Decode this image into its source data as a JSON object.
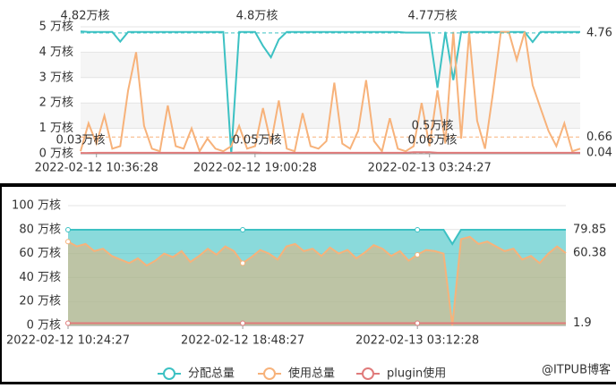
{
  "chart_data": [
    {
      "type": "line",
      "split_area": true,
      "grid": true,
      "categories": [
        null,
        null,
        "2022-02-12 10:36:28",
        null,
        null,
        null,
        null,
        null,
        null,
        null,
        null,
        null,
        null,
        null,
        null,
        null,
        null,
        null,
        null,
        null,
        null,
        null,
        "2022-02-12 19:00:28",
        null,
        null,
        null,
        null,
        null,
        null,
        null,
        null,
        null,
        null,
        null,
        null,
        null,
        null,
        null,
        null,
        null,
        null,
        null,
        null,
        null,
        "2022-02-13 03:24:27",
        null,
        null,
        null,
        null,
        null,
        null,
        null,
        null,
        null,
        null,
        null,
        null,
        null,
        null,
        null,
        null,
        null,
        null,
        null
      ],
      "ylim": [
        0,
        5
      ],
      "yticks": [
        {
          "value": 0,
          "label": "0 万核"
        },
        {
          "value": 1,
          "label": "1 万核"
        },
        {
          "value": 2,
          "label": "2 万核"
        },
        {
          "value": 3,
          "label": "3 万核"
        },
        {
          "value": 4,
          "label": "4 万核"
        },
        {
          "value": 5,
          "label": "5 万核"
        }
      ],
      "series": [
        {
          "color": "#3cc1c3",
          "average": 4.76,
          "values": [
            4.82,
            4.8,
            4.8,
            4.8,
            4.8,
            4.42,
            4.8,
            4.8,
            4.8,
            4.8,
            4.8,
            4.8,
            4.8,
            4.8,
            4.8,
            4.8,
            4.8,
            4.8,
            4.8,
            0,
            4.8,
            4.8,
            4.8,
            4.25,
            3.8,
            4.5,
            4.8,
            4.8,
            4.8,
            4.8,
            4.8,
            4.8,
            4.8,
            4.8,
            4.8,
            4.8,
            4.8,
            4.8,
            4.8,
            4.8,
            4.8,
            4.77,
            4.77,
            4.77,
            4.77,
            2.6,
            4.8,
            2.9,
            4.8,
            4.8,
            4.8,
            4.8,
            4.8,
            4.8,
            4.8,
            4.8,
            4.8,
            4.4,
            4.8,
            4.8,
            4.8,
            4.8,
            4.8,
            4.8
          ]
        },
        {
          "color": "#f7b27a",
          "average": 0.66,
          "values": [
            0.1,
            1.2,
            0.4,
            1.5,
            0.2,
            0.3,
            2.5,
            4.0,
            1.1,
            0.2,
            0.1,
            1.9,
            0.3,
            0.2,
            1.0,
            0.1,
            0.6,
            0.2,
            0.1,
            0.3,
            1.1,
            0.2,
            0.3,
            1.8,
            0.4,
            2.1,
            0.2,
            0.1,
            1.6,
            0.3,
            0.2,
            0.5,
            2.8,
            0.4,
            0.2,
            0.9,
            2.9,
            0.5,
            0.1,
            1.4,
            0.2,
            0.1,
            0.3,
            2.0,
            0.3,
            2.5,
            0.4,
            4.8,
            0.6,
            4.8,
            1.3,
            0.2,
            2.4,
            4.8,
            4.8,
            3.7,
            4.8,
            2.7,
            1.8,
            0.9,
            0.3,
            1.2,
            0.1,
            0.2
          ]
        },
        {
          "color": "#e07b7b",
          "average": 0.04,
          "values": [
            0.03,
            0.03,
            0.04,
            0.04,
            0.04,
            0.04,
            0.04,
            0.04,
            0.04,
            0.04,
            0.04,
            0.04,
            0.04,
            0.04,
            0.04,
            0.04,
            0.04,
            0.04,
            0.04,
            0.04,
            0.05,
            0.05,
            0.05,
            0.04,
            0.04,
            0.04,
            0.04,
            0.04,
            0.04,
            0.04,
            0.04,
            0.04,
            0.04,
            0.04,
            0.04,
            0.04,
            0.04,
            0.04,
            0.04,
            0.04,
            0.04,
            0.04,
            0.06,
            0.06,
            0.06,
            0.04,
            0.04,
            0.04,
            0.04,
            0.04,
            0.04,
            0.04,
            0.04,
            0.04,
            0.04,
            0.04,
            0.04,
            0.04,
            0.04,
            0.04,
            0.04,
            0.04,
            0.04,
            0.04
          ]
        }
      ],
      "annotations": [
        {
          "text": "4.82万核",
          "color": "#3cc1c3"
        },
        {
          "text": "4.8万核",
          "color": "#3cc1c3"
        },
        {
          "text": "4.77万核",
          "color": "#3cc1c3"
        },
        {
          "text": "0.03万核",
          "color": "#e07b7b"
        },
        {
          "text": "0.05万核",
          "color": "#e07b7b"
        },
        {
          "text": "0.06万核",
          "color": "#e07b7b"
        },
        {
          "text": "0.5万核",
          "color": "#f7d2b0"
        }
      ]
    },
    {
      "type": "area",
      "grid": true,
      "dots": true,
      "categories": [
        "2022-02-12 10:24:27",
        null,
        null,
        null,
        null,
        null,
        null,
        null,
        null,
        null,
        null,
        null,
        null,
        null,
        null,
        null,
        null,
        null,
        null,
        null,
        "2022-02-12 18:48:27",
        null,
        null,
        null,
        null,
        null,
        null,
        null,
        null,
        null,
        null,
        null,
        null,
        null,
        null,
        null,
        null,
        null,
        null,
        null,
        "2022-02-13 03:12:28",
        null,
        null,
        null,
        null,
        null,
        null,
        null,
        null,
        null,
        null,
        null,
        null,
        null,
        null,
        null,
        null,
        null
      ],
      "ylim": [
        0,
        100
      ],
      "yticks": [
        {
          "value": 0,
          "label": "0 万核"
        },
        {
          "value": 20,
          "label": "20 万核"
        },
        {
          "value": 40,
          "label": "40 万核"
        },
        {
          "value": 60,
          "label": "60 万核"
        },
        {
          "value": 80,
          "label": "80 万核"
        },
        {
          "value": 100,
          "label": "100 万核"
        }
      ],
      "series": [
        {
          "name": "分配总量",
          "color": "#3cc1c3",
          "values": [
            79.85,
            79.85,
            79.85,
            79.85,
            79.85,
            79.85,
            79.85,
            79.85,
            79.85,
            79.85,
            79.85,
            79.85,
            79.85,
            79.85,
            79.85,
            79.85,
            79.85,
            79.85,
            79.85,
            79.85,
            79.85,
            79.85,
            79.85,
            79.85,
            79.85,
            79.85,
            79.85,
            79.85,
            79.85,
            79.85,
            79.85,
            79.85,
            79.85,
            79.85,
            79.85,
            79.85,
            79.85,
            79.85,
            79.85,
            79.85,
            79.85,
            79.85,
            79.85,
            79.85,
            68,
            79.85,
            79.85,
            79.85,
            79.85,
            79.85,
            79.85,
            79.85,
            79.85,
            79.85,
            79.85,
            79.85,
            79.85,
            79.85
          ]
        },
        {
          "name": "使用总量",
          "color": "#f7b27a",
          "values": [
            70,
            66,
            68,
            62,
            64,
            58,
            55,
            52,
            56,
            50,
            54,
            60,
            57,
            62,
            53,
            58,
            64,
            59,
            66,
            62,
            52,
            57,
            63,
            60,
            55,
            66,
            68,
            62,
            64,
            58,
            65,
            60,
            63,
            56,
            61,
            67,
            64,
            58,
            62,
            54,
            59,
            63,
            62,
            60,
            0,
            72,
            74,
            68,
            70,
            66,
            62,
            64,
            55,
            58,
            52,
            60,
            66,
            60.38
          ]
        },
        {
          "name": "plugin使用",
          "color": "#e07b7b",
          "values": [
            1.9,
            1.9,
            1.9,
            1.9,
            1.9,
            1.9,
            1.9,
            1.9,
            1.9,
            1.9,
            1.9,
            1.9,
            1.9,
            1.9,
            1.9,
            1.9,
            1.9,
            1.9,
            1.9,
            1.9,
            1.9,
            1.9,
            1.9,
            1.9,
            1.9,
            1.9,
            1.9,
            1.9,
            1.9,
            1.9,
            1.9,
            1.9,
            1.9,
            1.9,
            1.9,
            1.9,
            1.9,
            1.9,
            1.9,
            1.9,
            1.9,
            1.9,
            1.9,
            1.9,
            1.9,
            1.9,
            1.9,
            1.9,
            1.9,
            1.9,
            1.9,
            1.9,
            1.9,
            1.9,
            1.9,
            1.9,
            1.9,
            1.9
          ]
        }
      ],
      "watermark": "@ITPUB博客"
    }
  ]
}
